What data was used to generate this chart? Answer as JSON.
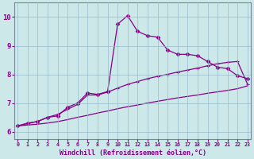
{
  "xlabel": "Windchill (Refroidissement éolien,°C)",
  "bg_color": "#cce8e8",
  "line_color": "#880088",
  "grid_color": "#99bbcc",
  "x_ticks": [
    0,
    1,
    2,
    3,
    4,
    5,
    6,
    7,
    8,
    9,
    10,
    11,
    12,
    13,
    14,
    15,
    16,
    17,
    18,
    19,
    20,
    21,
    22,
    23
  ],
  "y_ticks": [
    6,
    7,
    8,
    9,
    10
  ],
  "xlim": [
    -0.3,
    23.3
  ],
  "ylim": [
    5.75,
    10.5
  ],
  "main_x": [
    0,
    1,
    2,
    3,
    4,
    5,
    6,
    7,
    8,
    9,
    10,
    11,
    12,
    13,
    14,
    15,
    16,
    17,
    18,
    19,
    20,
    21,
    22,
    23
  ],
  "main_y": [
    6.2,
    6.3,
    6.35,
    6.5,
    6.55,
    6.85,
    7.0,
    7.35,
    7.3,
    7.4,
    9.75,
    10.05,
    9.5,
    9.35,
    9.3,
    8.85,
    8.7,
    8.7,
    8.65,
    8.45,
    8.25,
    8.2,
    7.95,
    7.85
  ],
  "upper_x": [
    0,
    1,
    2,
    3,
    4,
    5,
    6,
    7,
    8,
    9,
    10,
    11,
    12,
    13,
    14,
    15,
    16,
    17,
    18,
    19,
    20,
    21,
    22,
    23
  ],
  "upper_y": [
    6.2,
    6.28,
    6.36,
    6.5,
    6.6,
    6.78,
    6.95,
    7.28,
    7.28,
    7.38,
    7.52,
    7.65,
    7.75,
    7.85,
    7.93,
    8.0,
    8.08,
    8.15,
    8.22,
    8.3,
    8.37,
    8.42,
    8.45,
    7.65
  ],
  "lower_x": [
    0,
    1,
    2,
    3,
    4,
    5,
    6,
    7,
    8,
    9,
    10,
    11,
    12,
    13,
    14,
    15,
    16,
    17,
    18,
    19,
    20,
    21,
    22,
    23
  ],
  "lower_y": [
    6.2,
    6.23,
    6.26,
    6.3,
    6.35,
    6.42,
    6.5,
    6.57,
    6.65,
    6.72,
    6.8,
    6.87,
    6.93,
    7.0,
    7.06,
    7.12,
    7.18,
    7.23,
    7.28,
    7.34,
    7.39,
    7.44,
    7.5,
    7.6
  ]
}
